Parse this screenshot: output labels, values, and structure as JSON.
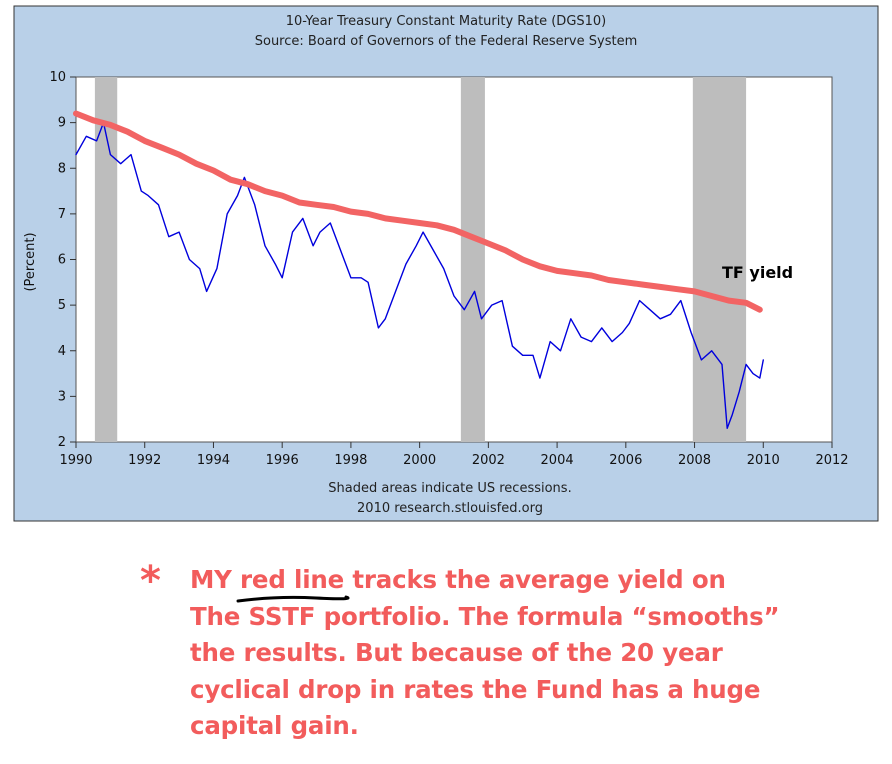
{
  "chart_data": {
    "type": "line",
    "title": "10-Year Treasury Constant Maturity Rate (DGS10)",
    "subtitle": "Source: Board of Governors of the Federal Reserve System",
    "xlabel": "",
    "ylabel": "(Percent)",
    "xlim": [
      1990,
      2012
    ],
    "ylim": [
      2,
      10
    ],
    "x_ticks": [
      "1990",
      "1992",
      "1994",
      "1996",
      "1998",
      "2000",
      "2002",
      "2004",
      "2006",
      "2008",
      "2010",
      "2012"
    ],
    "y_ticks": [
      "2",
      "3",
      "4",
      "5",
      "6",
      "7",
      "8",
      "9",
      "10"
    ],
    "recessions": [
      [
        1990.55,
        1991.2
      ],
      [
        2001.2,
        2001.9
      ],
      [
        2007.95,
        2009.5
      ]
    ],
    "series": [
      {
        "color": "#0000dd",
        "x": [
          1990.0,
          1990.3,
          1990.6,
          1990.8,
          1991.0,
          1991.3,
          1991.6,
          1991.9,
          1992.1,
          1992.4,
          1992.7,
          1993.0,
          1993.3,
          1993.6,
          1993.8,
          1994.1,
          1994.4,
          1994.7,
          1994.9,
          1995.2,
          1995.5,
          1995.8,
          1996.0,
          1996.3,
          1996.6,
          1996.9,
          1997.1,
          1997.4,
          1997.7,
          1998.0,
          1998.3,
          1998.5,
          1998.8,
          1999.0,
          1999.3,
          1999.6,
          1999.9,
          2000.1,
          2000.4,
          2000.7,
          2001.0,
          2001.3,
          2001.6,
          2001.8,
          2002.1,
          2002.4,
          2002.7,
          2003.0,
          2003.3,
          2003.5,
          2003.8,
          2004.1,
          2004.4,
          2004.7,
          2005.0,
          2005.3,
          2005.6,
          2005.9,
          2006.1,
          2006.4,
          2006.7,
          2007.0,
          2007.3,
          2007.6,
          2007.9,
          2008.2,
          2008.5,
          2008.8,
          2008.95,
          2009.1,
          2009.3,
          2009.5,
          2009.7,
          2009.9,
          2010.0
        ],
        "values": [
          8.3,
          8.7,
          8.6,
          9.0,
          8.3,
          8.1,
          8.3,
          7.5,
          7.4,
          7.2,
          6.5,
          6.6,
          6.0,
          5.8,
          5.3,
          5.8,
          7.0,
          7.4,
          7.8,
          7.2,
          6.3,
          5.9,
          5.6,
          6.6,
          6.9,
          6.3,
          6.6,
          6.8,
          6.2,
          5.6,
          5.6,
          5.5,
          4.5,
          4.7,
          5.3,
          5.9,
          6.3,
          6.6,
          6.2,
          5.8,
          5.2,
          4.9,
          5.3,
          4.7,
          5.0,
          5.1,
          4.1,
          3.9,
          3.9,
          3.4,
          4.2,
          4.0,
          4.7,
          4.3,
          4.2,
          4.5,
          4.2,
          4.4,
          4.6,
          5.1,
          4.9,
          4.7,
          4.8,
          5.1,
          4.4,
          3.8,
          4.0,
          3.7,
          2.3,
          2.6,
          3.1,
          3.7,
          3.5,
          3.4,
          3.8
        ]
      },
      {
        "name": "TF yield",
        "color": "#f26464",
        "x": [
          1990.0,
          1990.5,
          1991.0,
          1991.5,
          1992.0,
          1992.5,
          1993.0,
          1993.5,
          1994.0,
          1994.5,
          1995.0,
          1995.5,
          1996.0,
          1996.5,
          1997.0,
          1997.5,
          1998.0,
          1998.5,
          1999.0,
          1999.5,
          2000.0,
          2000.5,
          2001.0,
          2001.5,
          2002.0,
          2002.5,
          2003.0,
          2003.5,
          2004.0,
          2004.5,
          2005.0,
          2005.5,
          2006.0,
          2006.5,
          2007.0,
          2007.5,
          2008.0,
          2008.5,
          2009.0,
          2009.5,
          2009.9
        ],
        "values": [
          9.2,
          9.05,
          8.95,
          8.8,
          8.6,
          8.45,
          8.3,
          8.1,
          7.95,
          7.75,
          7.65,
          7.5,
          7.4,
          7.25,
          7.2,
          7.15,
          7.05,
          7.0,
          6.9,
          6.85,
          6.8,
          6.75,
          6.65,
          6.5,
          6.35,
          6.2,
          6.0,
          5.85,
          5.75,
          5.7,
          5.65,
          5.55,
          5.5,
          5.45,
          5.4,
          5.35,
          5.3,
          5.2,
          5.1,
          5.05,
          4.9
        ]
      }
    ],
    "annotations": [
      "TF yield"
    ],
    "grid": false,
    "legend": "none"
  },
  "notes": {
    "line1": "Shaded areas indicate US recessions.",
    "line2": "2010 research.stlouisfed.org"
  },
  "annotation": {
    "asterisk": "*",
    "line1": "MY red line tracks the average yield on",
    "line2": "The SSTF portfolio. The formula “smooths”",
    "line3": "the results. But because of the 20 year",
    "line4": "cyclical drop in rates the Fund has a huge",
    "line5": "capital gain."
  },
  "colors": {
    "frame_bg": "#b9d0e8",
    "plot_bg": "#ffffff",
    "recession": "#bdbdbd",
    "annotation": "#f25c5c"
  }
}
